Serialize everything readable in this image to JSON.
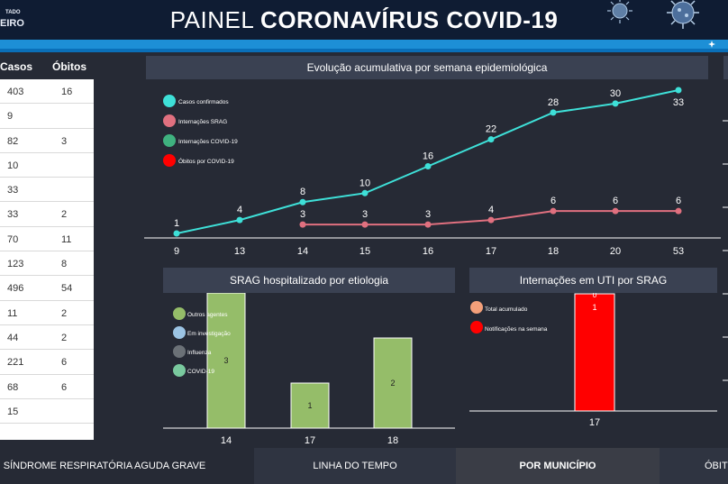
{
  "header": {
    "logo_line1": "TADO",
    "logo_line2": "EIRO",
    "title_light": "PAINEL",
    "title_bold": "CORONAVÍRUS COVID-19"
  },
  "table": {
    "headers": [
      "Casos",
      "Óbitos"
    ],
    "rows": [
      [
        "403",
        "16"
      ],
      [
        "9",
        ""
      ],
      [
        "82",
        "3"
      ],
      [
        "10",
        ""
      ],
      [
        "33",
        ""
      ],
      [
        "33",
        "2"
      ],
      [
        "70",
        "11"
      ],
      [
        "123",
        "8"
      ],
      [
        "496",
        "54"
      ],
      [
        "11",
        "2"
      ],
      [
        "44",
        "2"
      ],
      [
        "221",
        "6"
      ],
      [
        "68",
        "6"
      ],
      [
        "15",
        ""
      ]
    ]
  },
  "panels": {
    "evolucao_title": "Evolução acumulativa por semana epidemiológica",
    "srag_title": "SRAG hospitalizado por etiologia",
    "uti_title": "Internações em UTI por SRAG"
  },
  "chart_data": [
    {
      "type": "line",
      "title": "Evolução acumulativa por semana epidemiológica",
      "categories": [
        "9",
        "13",
        "14",
        "15",
        "16",
        "17",
        "18",
        "20",
        "53"
      ],
      "series": [
        {
          "name": "Casos confirmados",
          "color": "#3ee0d8",
          "values": [
            1,
            4,
            8,
            10,
            16,
            22,
            28,
            30,
            33
          ]
        },
        {
          "name": "Internações SRAG",
          "color": "#e0707f",
          "values": [
            null,
            null,
            3,
            3,
            3,
            4,
            6,
            6,
            6
          ]
        }
      ],
      "legend": [
        {
          "name": "Casos confirmados",
          "color": "#3ee0d8"
        },
        {
          "name": "Internações SRAG",
          "color": "#e0707f"
        },
        {
          "name": "Internações COVID-19",
          "color": "#3fb27f"
        },
        {
          "name": "Óbitos por COVID-19",
          "color": "#ff0000"
        }
      ],
      "legend_position": "top-left"
    },
    {
      "type": "bar",
      "title": "SRAG hospitalizado por etiologia",
      "categories": [
        "14",
        "17",
        "18"
      ],
      "values": [
        3,
        1,
        2
      ],
      "color": "#95bd69",
      "legend": [
        {
          "name": "Outros agentes",
          "color": "#95bd69"
        },
        {
          "name": "Em investigação",
          "color": "#9cc4e4"
        },
        {
          "name": "Influenza",
          "color": "#6b7177"
        },
        {
          "name": "COVID-19",
          "color": "#79c99e"
        }
      ],
      "legend_position": "top-left"
    },
    {
      "type": "bar",
      "title": "Internações em UTI por SRAG",
      "categories": [
        "17"
      ],
      "series": [
        {
          "name": "Total acumulado",
          "color": "#f4a07a",
          "values": [
            0
          ]
        },
        {
          "name": "Notificações na semana",
          "color": "#ff0000",
          "values": [
            1
          ]
        }
      ],
      "legend_position": "top-left"
    }
  ],
  "bottom_nav": [
    "SÍNDROME RESPIRATÓRIA AGUDA GRAVE",
    "LINHA DO TEMPO",
    "POR MUNICÍPIO",
    "ÓBIT"
  ]
}
